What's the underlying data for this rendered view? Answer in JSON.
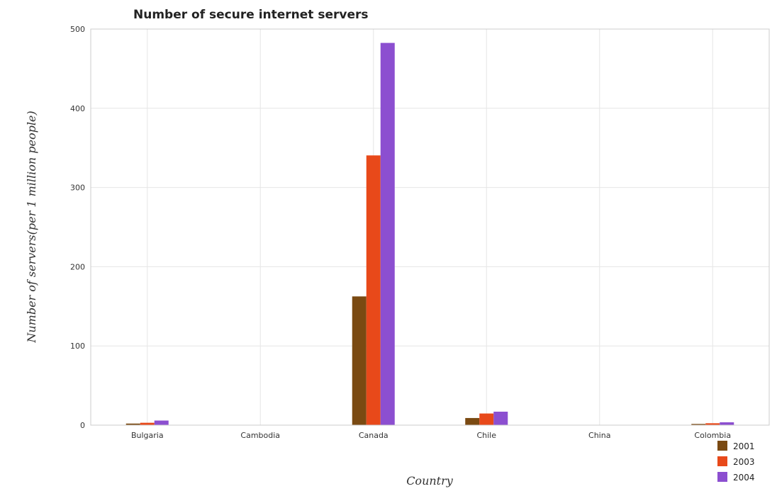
{
  "chart_data": {
    "type": "bar",
    "title": "Number of secure internet servers",
    "xlabel": "Country",
    "ylabel": "Number of servers(per 1 million people)",
    "categories": [
      "Bulgaria",
      "Cambodia",
      "Canada",
      "Chile",
      "China",
      "Colombia"
    ],
    "series": [
      {
        "name": "2001",
        "color": "#7a4a12",
        "values": [
          2.0,
          0.05,
          162.5,
          9.0,
          0.05,
          1.5
        ]
      },
      {
        "name": "2003",
        "color": "#e8491a",
        "values": [
          3.0,
          0.1,
          340.5,
          14.7,
          0.1,
          2.4
        ]
      },
      {
        "name": "2004",
        "color": "#8c4fd0",
        "values": [
          5.8,
          0.15,
          482.5,
          17.0,
          0.2,
          3.6
        ]
      }
    ],
    "ylim": [
      0,
      500
    ],
    "yticks": [
      0,
      100,
      200,
      300,
      400,
      500
    ],
    "grid": true,
    "legend_position": "bottom-right"
  }
}
